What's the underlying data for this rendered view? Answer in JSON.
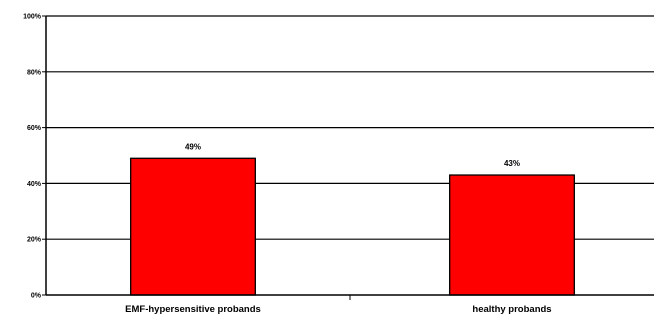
{
  "chart_data": {
    "type": "bar",
    "title": "",
    "xlabel": "",
    "ylabel": "",
    "categories": [
      "EMF-hypersensitive probands",
      "healthy probands"
    ],
    "values": [
      49,
      43
    ],
    "data_labels": [
      "49%",
      "43%"
    ],
    "ylim": [
      0,
      100
    ],
    "y_ticks": [
      0,
      20,
      40,
      60,
      80,
      100
    ],
    "y_tick_labels": [
      "0%",
      "20%",
      "40%",
      "60%",
      "80%",
      "100%"
    ],
    "grid": true,
    "legend": "none",
    "colors": {
      "bar": "#ff0000",
      "bar_outline": "#000000",
      "grid": "#000000",
      "background": "#ffffff"
    }
  }
}
